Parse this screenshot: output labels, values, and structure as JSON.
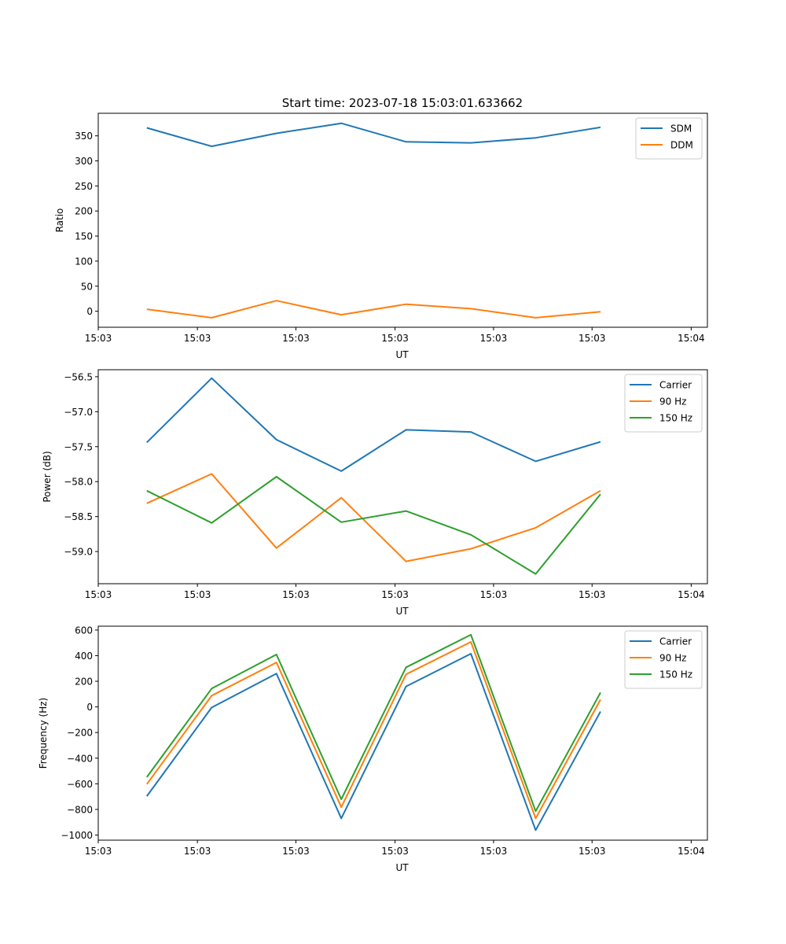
{
  "figure": {
    "title": "Start time: 2023-07-18 15:03:01.633662"
  },
  "chart_data": [
    {
      "type": "line",
      "title": "Start time: 2023-07-18 15:03:01.633662",
      "xlabel": "UT",
      "ylabel": "Ratio",
      "x_tick_labels": [
        "15:03",
        "15:03",
        "15:03",
        "15:03",
        "15:03",
        "15:03",
        "15:04"
      ],
      "y_ticks": [
        0,
        50,
        100,
        150,
        200,
        250,
        300,
        350
      ],
      "y_tick_labels": [
        "0",
        "50",
        "100",
        "150",
        "200",
        "250",
        "300",
        "350"
      ],
      "ylim": [
        -32,
        395
      ],
      "x_index": [
        0,
        1,
        2,
        3,
        4,
        5,
        6,
        7
      ],
      "xlim_index": [
        -0.75,
        8.65
      ],
      "x_tick_index": [
        -0.75,
        0.78,
        2.3,
        3.83,
        5.35,
        6.87,
        8.4
      ],
      "legend": "top-right",
      "grid": false,
      "series": [
        {
          "name": "SDM",
          "color": "#1f77b4",
          "values": [
            366,
            329,
            355,
            375,
            338,
            336,
            346,
            367
          ]
        },
        {
          "name": "DDM",
          "color": "#ff7f0e",
          "values": [
            4,
            -13,
            21,
            -7,
            14,
            5,
            -13,
            -1
          ]
        }
      ]
    },
    {
      "type": "line",
      "title": "",
      "xlabel": "UT",
      "ylabel": "Power (dB)",
      "x_tick_labels": [
        "15:03",
        "15:03",
        "15:03",
        "15:03",
        "15:03",
        "15:03",
        "15:04"
      ],
      "y_ticks": [
        -56.5,
        -57.0,
        -57.5,
        -58.0,
        -58.5,
        -59.0
      ],
      "y_tick_labels": [
        "−56.5",
        "−57.0",
        "−57.5",
        "−58.0",
        "−58.5",
        "−59.0"
      ],
      "ylim": [
        -59.46,
        -56.4
      ],
      "x_index": [
        0,
        1,
        2,
        3,
        4,
        5,
        6,
        7
      ],
      "xlim_index": [
        -0.75,
        8.65
      ],
      "x_tick_index": [
        -0.75,
        0.78,
        2.3,
        3.83,
        5.35,
        6.87,
        8.4
      ],
      "legend": "top-right",
      "grid": false,
      "series": [
        {
          "name": "Carrier",
          "color": "#1f77b4",
          "values": [
            -57.44,
            -56.52,
            -57.4,
            -57.85,
            -57.26,
            -57.29,
            -57.71,
            -57.43
          ]
        },
        {
          "name": "90 Hz",
          "color": "#ff7f0e",
          "values": [
            -58.31,
            -57.89,
            -58.95,
            -58.23,
            -59.14,
            -58.96,
            -58.66,
            -58.13
          ]
        },
        {
          "name": "150 Hz",
          "color": "#2ca02c",
          "values": [
            -58.13,
            -58.59,
            -57.93,
            -58.58,
            -58.42,
            -58.76,
            -59.32,
            -58.18
          ]
        }
      ]
    },
    {
      "type": "line",
      "title": "",
      "xlabel": "UT",
      "ylabel": "Frequency (Hz)",
      "x_tick_labels": [
        "15:03",
        "15:03",
        "15:03",
        "15:03",
        "15:03",
        "15:03",
        "15:04"
      ],
      "y_ticks": [
        600,
        400,
        200,
        0,
        -200,
        -400,
        -600,
        -800,
        -1000
      ],
      "y_tick_labels": [
        "600",
        "400",
        "200",
        "0",
        "−200",
        "−400",
        "−600",
        "−800",
        "−1000"
      ],
      "ylim": [
        -1040,
        630
      ],
      "x_index": [
        0,
        1,
        2,
        3,
        4,
        5,
        6,
        7
      ],
      "xlim_index": [
        -0.75,
        8.65
      ],
      "x_tick_index": [
        -0.75,
        0.78,
        2.3,
        3.83,
        5.35,
        6.87,
        8.4
      ],
      "legend": "top-right",
      "grid": false,
      "series": [
        {
          "name": "Carrier",
          "color": "#1f77b4",
          "values": [
            -697,
            -5,
            260,
            -870,
            160,
            415,
            -962,
            -36
          ]
        },
        {
          "name": "90 Hz",
          "color": "#ff7f0e",
          "values": [
            -603,
            88,
            347,
            -783,
            254,
            507,
            -870,
            57
          ]
        },
        {
          "name": "150 Hz",
          "color": "#2ca02c",
          "values": [
            -548,
            143,
            409,
            -721,
            309,
            563,
            -814,
            112
          ]
        }
      ]
    }
  ]
}
